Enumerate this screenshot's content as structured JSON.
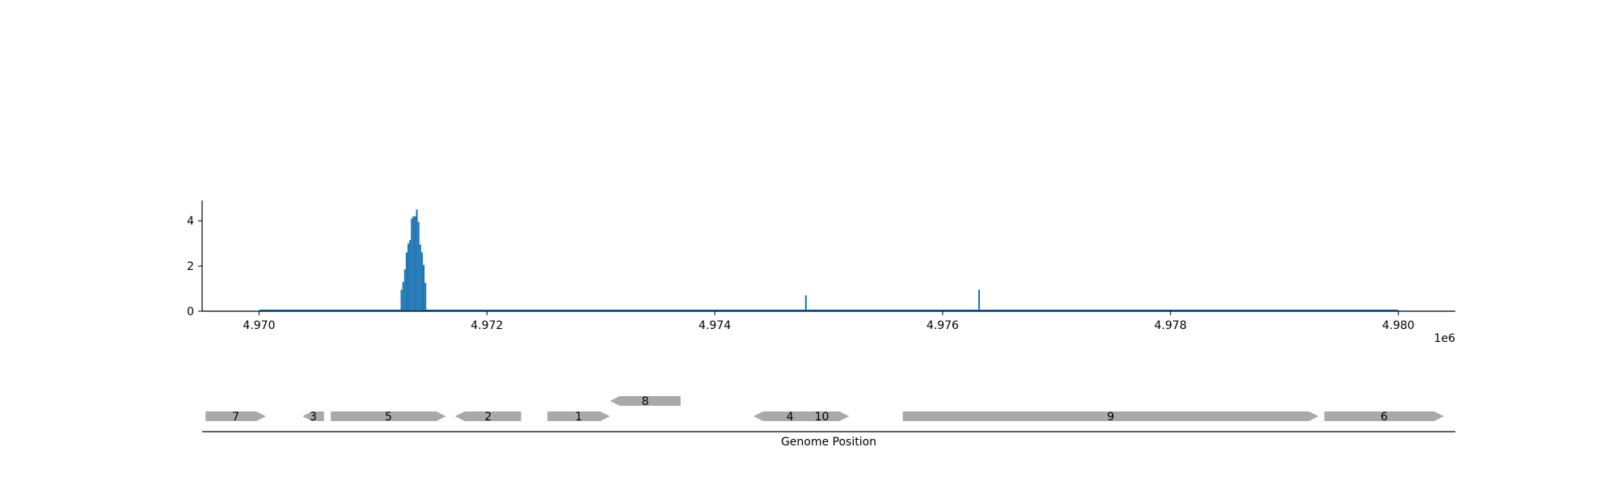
{
  "chart_data": [
    {
      "type": "bar",
      "title": "",
      "xlabel": "",
      "ylabel": "",
      "x_offset_label": "1e6",
      "xlim": [
        4.9695,
        4.9805
      ],
      "ylim": [
        0,
        4.9
      ],
      "x_ticks": [
        4.97,
        4.972,
        4.974,
        4.976,
        4.978,
        4.98
      ],
      "x_tick_labels": [
        "4.970",
        "4.972",
        "4.974",
        "4.976",
        "4.978",
        "4.980"
      ],
      "y_ticks": [
        0,
        2,
        4
      ],
      "y_tick_labels": [
        "0",
        "2",
        "4"
      ],
      "baseline_range": [
        4.97,
        4.98
      ],
      "color": "#1f77b4",
      "grid": false,
      "bars": [
        {
          "x": 4.97125,
          "y": 0.95
        },
        {
          "x": 4.971265,
          "y": 1.3
        },
        {
          "x": 4.97128,
          "y": 1.85
        },
        {
          "x": 4.971295,
          "y": 2.6
        },
        {
          "x": 4.97131,
          "y": 3.0
        },
        {
          "x": 4.971325,
          "y": 3.15
        },
        {
          "x": 4.97134,
          "y": 4.1
        },
        {
          "x": 4.971355,
          "y": 4.2
        },
        {
          "x": 4.97137,
          "y": 4.2
        },
        {
          "x": 4.971385,
          "y": 4.5
        },
        {
          "x": 4.9714,
          "y": 3.95
        },
        {
          "x": 4.971415,
          "y": 2.95
        },
        {
          "x": 4.97143,
          "y": 2.6
        },
        {
          "x": 4.971445,
          "y": 2.05
        },
        {
          "x": 4.97146,
          "y": 1.25
        },
        {
          "x": 4.9748,
          "y": 0.7
        },
        {
          "x": 4.97632,
          "y": 0.95
        }
      ]
    },
    {
      "type": "gene-map",
      "title": "",
      "xlabel": "Genome Position",
      "xlim": [
        4.9695,
        4.9805
      ],
      "color": "#a9a9a9",
      "genes": [
        {
          "label": "7",
          "start": 4.96953,
          "end": 4.97006,
          "strand": "+",
          "row": 0
        },
        {
          "label": "3",
          "start": 4.97038,
          "end": 4.97057,
          "strand": "-",
          "row": 0
        },
        {
          "label": "5",
          "start": 4.97063,
          "end": 4.97164,
          "strand": "+",
          "row": 0
        },
        {
          "label": "2",
          "start": 4.97172,
          "end": 4.9723,
          "strand": "-",
          "row": 0
        },
        {
          "label": "1",
          "start": 4.97253,
          "end": 4.97308,
          "strand": "+",
          "row": 0
        },
        {
          "label": "8",
          "start": 4.97308,
          "end": 4.9737,
          "strand": "-",
          "row": 1
        },
        {
          "label": "4",
          "start": 4.97434,
          "end": 4.97498,
          "strand": "-",
          "row": 0
        },
        {
          "label": "10",
          "start": 4.9747,
          "end": 4.97518,
          "strand": "+",
          "row": 0
        },
        {
          "label": "9",
          "start": 4.97565,
          "end": 4.9793,
          "strand": "+",
          "row": 0
        },
        {
          "label": "6",
          "start": 4.97935,
          "end": 4.9804,
          "strand": "+",
          "row": 0
        }
      ]
    }
  ]
}
